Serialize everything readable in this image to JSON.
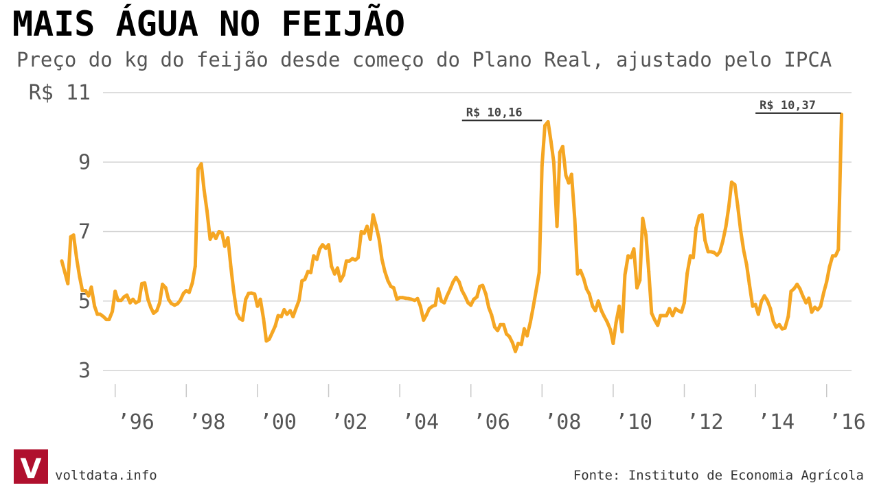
{
  "header": {
    "title": "MAIS ÁGUA NO FEIJÃO",
    "subtitle": "Preço do kg do feijão desde começo do Plano Real, ajustado pelo IPCA"
  },
  "footer": {
    "site": "voltdata.info",
    "source": "Fonte: Instituto de Economia Agrícola",
    "logo_letter": "V"
  },
  "colors": {
    "line": "#f5a623",
    "logo_bg": "#b0102e"
  },
  "chart_data": {
    "type": "line",
    "title": "MAIS ÁGUA NO FEIJÃO",
    "subtitle": "Preço do kg do feijão desde começo do Plano Real, ajustado pelo IPCA",
    "ylim": [
      3,
      11
    ],
    "xlim": [
      1994.5,
      2016.7
    ],
    "grid": "horizontal",
    "y_ticks": [
      {
        "value": 11,
        "label": "R$ 11"
      },
      {
        "value": 9,
        "label": "9"
      },
      {
        "value": 7,
        "label": "7"
      },
      {
        "value": 5,
        "label": "5"
      },
      {
        "value": 3,
        "label": "3"
      }
    ],
    "x_tick_marks": [
      1996,
      1998,
      2000,
      2002,
      2004,
      2006,
      2008,
      2010,
      2012,
      2014,
      2016
    ],
    "x_labels": [
      {
        "value": 1996,
        "label": "’96"
      },
      {
        "value": 1998,
        "label": "’98"
      },
      {
        "value": 2000,
        "label": "’00"
      },
      {
        "value": 2002,
        "label": "’02"
      },
      {
        "value": 2004,
        "label": "’04"
      },
      {
        "value": 2006,
        "label": "’06"
      },
      {
        "value": 2008,
        "label": "’08"
      },
      {
        "value": 2010,
        "label": "’10"
      },
      {
        "value": 2012,
        "label": "’12"
      },
      {
        "value": 2014,
        "label": "’14"
      },
      {
        "value": 2016,
        "label": "’16"
      }
    ],
    "annotations": [
      {
        "text": "R$ 10,16",
        "x": 2008.0,
        "y": 10.16,
        "line_start_x": 2005.75
      },
      {
        "text": "R$ 10,37",
        "x": 2016.4,
        "y": 10.37,
        "line_start_x": 2014.0
      }
    ],
    "series": [
      {
        "x": [
          1994.5,
          1994.67,
          1994.75,
          1994.83,
          1994.92,
          1995.0,
          1995.08,
          1995.17,
          1995.25,
          1995.33,
          1995.42,
          1995.5,
          1995.58,
          1995.67,
          1995.75,
          1995.83,
          1995.92,
          1996.0,
          1996.08,
          1996.17,
          1996.25,
          1996.33,
          1996.42,
          1996.5,
          1996.58,
          1996.67,
          1996.75,
          1996.83,
          1996.92,
          1997.0,
          1997.08,
          1997.17,
          1997.25,
          1997.33,
          1997.42,
          1997.5,
          1997.58,
          1997.67,
          1997.75,
          1997.83,
          1997.92,
          1998.0,
          1998.08,
          1998.17,
          1998.25,
          1998.33,
          1998.42,
          1998.5,
          1998.58,
          1998.67,
          1998.75,
          1998.83,
          1998.92,
          1999.0,
          1999.08,
          1999.17,
          1999.25,
          1999.33,
          1999.42,
          1999.5,
          1999.58,
          1999.67,
          1999.75,
          1999.83,
          1999.92,
          2000.0,
          2000.08,
          2000.17,
          2000.25,
          2000.33,
          2000.42,
          2000.5,
          2000.58,
          2000.67,
          2000.75,
          2000.83,
          2000.92,
          2001.0,
          2001.08,
          2001.17,
          2001.25,
          2001.33,
          2001.42,
          2001.5,
          2001.58,
          2001.67,
          2001.75,
          2001.83,
          2001.92,
          2002.0,
          2002.08,
          2002.17,
          2002.25,
          2002.33,
          2002.42,
          2002.5,
          2002.58,
          2002.67,
          2002.75,
          2002.83,
          2002.92,
          2003.0,
          2003.08,
          2003.17,
          2003.25,
          2003.33,
          2003.42,
          2003.5,
          2003.58,
          2003.67,
          2003.75,
          2003.83,
          2003.92,
          2004.0,
          2004.08,
          2004.17,
          2004.25,
          2004.33,
          2004.42,
          2004.5,
          2004.58,
          2004.67,
          2004.75,
          2004.83,
          2004.92,
          2005.0,
          2005.08,
          2005.17,
          2005.25,
          2005.33,
          2005.42,
          2005.5,
          2005.58,
          2005.67,
          2005.75,
          2005.83,
          2005.92,
          2006.0,
          2006.08,
          2006.17,
          2006.25,
          2006.33,
          2006.42,
          2006.5,
          2006.58,
          2006.67,
          2006.75,
          2006.83,
          2006.92,
          2007.0,
          2007.08,
          2007.17,
          2007.25,
          2007.33,
          2007.42,
          2007.5,
          2007.58,
          2007.67,
          2007.75,
          2007.83,
          2007.92,
          2008.0,
          2008.08,
          2008.17,
          2008.25,
          2008.33,
          2008.42,
          2008.5,
          2008.58,
          2008.67,
          2008.75,
          2008.83,
          2008.92,
          2009.0,
          2009.08,
          2009.17,
          2009.25,
          2009.33,
          2009.42,
          2009.5,
          2009.58,
          2009.67,
          2009.75,
          2009.83,
          2009.92,
          2010.0,
          2010.08,
          2010.17,
          2010.25,
          2010.33,
          2010.42,
          2010.5,
          2010.58,
          2010.67,
          2010.75,
          2010.83,
          2010.92,
          2011.0,
          2011.08,
          2011.17,
          2011.25,
          2011.33,
          2011.42,
          2011.5,
          2011.58,
          2011.67,
          2011.75,
          2011.83,
          2011.92,
          2012.0,
          2012.08,
          2012.17,
          2012.25,
          2012.33,
          2012.42,
          2012.5,
          2012.58,
          2012.67,
          2012.75,
          2012.83,
          2012.92,
          2013.0,
          2013.08,
          2013.17,
          2013.25,
          2013.33,
          2013.42,
          2013.5,
          2013.58,
          2013.67,
          2013.75,
          2013.83,
          2013.92,
          2014.0,
          2014.08,
          2014.17,
          2014.25,
          2014.33,
          2014.42,
          2014.5,
          2014.58,
          2014.67,
          2014.75,
          2014.83,
          2014.92,
          2015.0,
          2015.08,
          2015.17,
          2015.25,
          2015.33,
          2015.42,
          2015.5,
          2015.58,
          2015.67,
          2015.75,
          2015.83,
          2015.92,
          2016.0,
          2016.08,
          2016.17,
          2016.25,
          2016.33,
          2016.42
        ],
        "y": [
          6.15,
          5.5,
          6.85,
          6.9,
          6.2,
          5.7,
          5.3,
          5.3,
          5.15,
          5.4,
          4.85,
          4.62,
          4.62,
          4.55,
          4.47,
          4.47,
          4.7,
          5.28,
          5.02,
          5.02,
          5.12,
          5.17,
          4.95,
          5.05,
          4.95,
          5.0,
          5.5,
          5.52,
          5.05,
          4.82,
          4.65,
          4.72,
          4.95,
          5.48,
          5.38,
          5.05,
          4.93,
          4.88,
          4.92,
          5.02,
          5.22,
          5.3,
          5.25,
          5.52,
          6.0,
          8.8,
          8.95,
          8.2,
          7.6,
          6.78,
          6.95,
          6.8,
          7.0,
          6.97,
          6.58,
          6.82,
          6.0,
          5.3,
          4.65,
          4.5,
          4.45,
          5.05,
          5.22,
          5.23,
          5.2,
          4.85,
          5.05,
          4.5,
          3.85,
          3.9,
          4.1,
          4.28,
          4.58,
          4.55,
          4.75,
          4.62,
          4.72,
          4.55,
          4.78,
          5.02,
          5.58,
          5.62,
          5.85,
          5.82,
          6.3,
          6.2,
          6.5,
          6.62,
          6.52,
          6.62,
          6.0,
          5.78,
          5.95,
          5.58,
          5.75,
          6.15,
          6.15,
          6.22,
          6.18,
          6.25,
          7.0,
          6.95,
          7.15,
          6.78,
          7.48,
          7.18,
          6.78,
          6.2,
          5.85,
          5.58,
          5.42,
          5.38,
          5.05,
          5.1,
          5.1,
          5.08,
          5.07,
          5.05,
          5.02,
          5.07,
          4.85,
          4.45,
          4.6,
          4.78,
          4.85,
          4.88,
          5.35,
          5.0,
          4.95,
          5.15,
          5.35,
          5.55,
          5.68,
          5.55,
          5.3,
          5.15,
          4.95,
          4.88,
          5.05,
          5.12,
          5.42,
          5.45,
          5.2,
          4.82,
          4.6,
          4.25,
          4.15,
          4.32,
          4.32,
          4.05,
          3.98,
          3.8,
          3.55,
          3.78,
          3.75,
          4.2,
          4.0,
          4.38,
          4.82,
          5.28,
          5.82,
          8.9,
          10.05,
          10.16,
          9.6,
          9.0,
          7.15,
          9.28,
          9.45,
          8.62,
          8.4,
          8.65,
          7.35,
          5.78,
          5.88,
          5.65,
          5.35,
          5.2,
          4.85,
          4.72,
          5.0,
          4.72,
          4.55,
          4.4,
          4.18,
          3.78,
          4.38,
          4.85,
          4.12,
          5.75,
          6.3,
          6.25,
          6.5,
          5.38,
          5.6,
          7.38,
          6.9,
          5.85,
          4.65,
          4.45,
          4.3,
          4.58,
          4.58,
          4.58,
          4.78,
          4.58,
          4.78,
          4.72,
          4.68,
          4.95,
          5.8,
          6.3,
          6.25,
          7.1,
          7.45,
          7.48,
          6.75,
          6.42,
          6.42,
          6.4,
          6.32,
          6.42,
          6.72,
          7.15,
          7.72,
          8.42,
          8.35,
          7.75,
          7.05,
          6.45,
          6.05,
          5.48,
          4.85,
          4.9,
          4.62,
          5.0,
          5.15,
          5.02,
          4.78,
          4.42,
          4.25,
          4.32,
          4.2,
          4.22,
          4.55,
          5.28,
          5.35,
          5.48,
          5.35,
          5.15,
          4.95,
          5.08,
          4.68,
          4.82,
          4.75,
          4.85,
          5.25,
          5.55,
          5.98,
          6.3,
          6.3,
          6.48,
          10.37
        ]
      }
    ]
  }
}
